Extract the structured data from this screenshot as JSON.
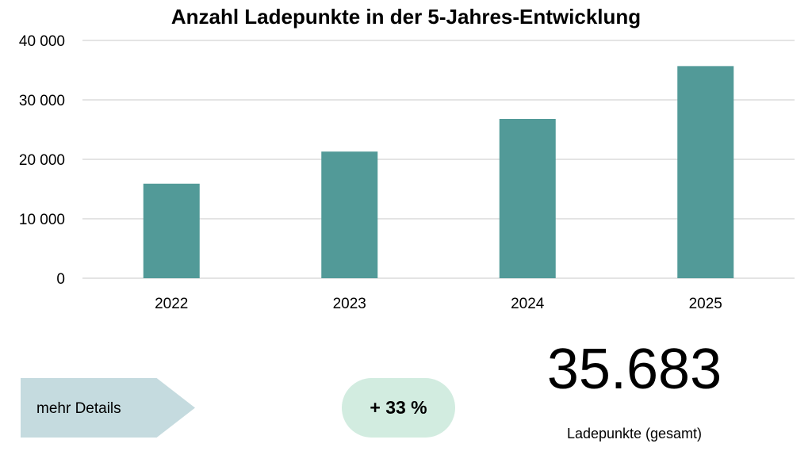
{
  "chart_data": {
    "type": "bar",
    "title": "Anzahl Ladepunkte in der 5-Jahres-Entwicklung",
    "categories": [
      "2022",
      "2023",
      "2024",
      "2025"
    ],
    "values": [
      15900,
      21300,
      26800,
      35683
    ],
    "ylim": [
      0,
      40000
    ],
    "yticks": [
      0,
      10000,
      20000,
      30000,
      40000
    ],
    "ytick_labels": [
      "0",
      "10 000",
      "20 000",
      "30 000",
      "40 000"
    ],
    "xlabel": "",
    "ylabel": "",
    "grid": true,
    "bar_color": "#529a98"
  },
  "cta": {
    "label": "mehr Details"
  },
  "growth": {
    "label": "+ 33 %"
  },
  "total": {
    "value": "35.683",
    "label": "Ladepunkte (gesamt)"
  }
}
